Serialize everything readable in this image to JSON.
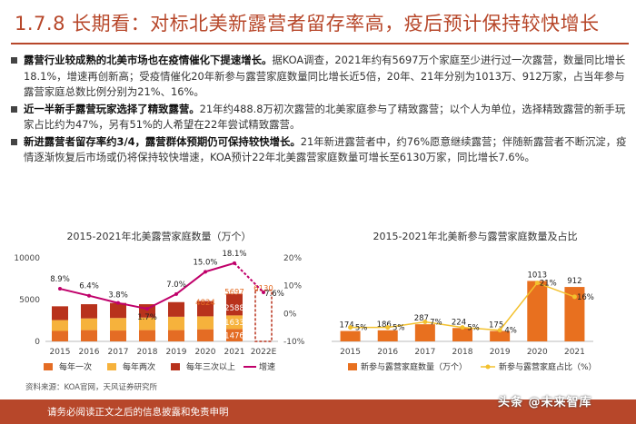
{
  "header": {
    "title": "1.7.8 长期看：对标北美新露营者留存率高，疫后预计保持较快增长"
  },
  "bullets": [
    {
      "lead": "露营行业较成熟的北美市场也在疫情催化下提速增长。",
      "text": "据KOA调查，2021年约有5697万个家庭至少进行过一次露营，数量同比增长18.1%，增速再创新高；受疫情催化20年新参与露营家庭数量同比增长近5倍，20年、21年分别为1013万、912万家，占当年参与露营家庭总数比例分别为21%、16%。"
    },
    {
      "lead": "近一半新手露营玩家选择了精致露营。",
      "text": "21年约488.8万初次露营的北美家庭参与了精致露营；以个人为单位，选择精致露营的新手玩家占比约为47%，另有51%的人希望在22年尝试精致露营。"
    },
    {
      "lead": "新进露营者留存率约3/4，露营群体预期仍可保持较快增长。",
      "text": "21年新进露营者中，约76%愿意继续露营；伴随新露营者不断沉淀，疫情逐渐恢复后市场或仍将保持较快增速，KOA预计22年北美露营家庭数量可增长至6130万家，同比增长7.6%。"
    }
  ],
  "chart_data": [
    {
      "type": "bar",
      "title": "2015-2021年北美露营家庭数量（万个）",
      "categories": [
        "2015",
        "2016",
        "2017",
        "2018",
        "2019",
        "2020",
        "2021",
        "2022E"
      ],
      "ylim": [
        0,
        10000
      ],
      "yticks": [
        "0",
        "5000",
        "10000"
      ],
      "y2lim": [
        -10,
        20
      ],
      "y2ticks": [
        "-10%",
        "0%",
        "10%",
        "20%"
      ],
      "series": [
        {
          "name": "每年一次",
          "color": "#e46c24",
          "values": [
            1250,
            1350,
            1300,
            1350,
            1350,
            1450,
            1476,
            null
          ]
        },
        {
          "name": "每年两次",
          "color": "#f6b23c",
          "values": [
            1300,
            1400,
            1500,
            1500,
            1600,
            1550,
            1633,
            null
          ]
        },
        {
          "name": "每年三次以上",
          "color": "#b8321c",
          "values": [
            1650,
            1700,
            1800,
            1600,
            1750,
            1824,
            2588,
            null
          ]
        },
        {
          "name": "增速",
          "color": "#c0006a",
          "type": "line",
          "values": [
            8.9,
            6.4,
            3.8,
            1.7,
            7.0,
            15.0,
            18.1,
            7.6
          ]
        }
      ],
      "forecast": {
        "category": "2022E",
        "value": 6130
      },
      "bar_labels": [
        "4824",
        "5697",
        "6130",
        "2588",
        "1633",
        "1476"
      ],
      "line_labels": [
        "8.9%",
        "6.4%",
        "3.8%",
        "1.7%",
        "7.0%",
        "15.0%",
        "18.1%",
        "7.6%"
      ]
    },
    {
      "type": "bar",
      "title": "2015-2021年北美新参与露营家庭数量及占比",
      "categories": [
        "2015",
        "2016",
        "2017",
        "2018",
        "2019",
        "2020",
        "2021"
      ],
      "ylim": [
        0,
        1400
      ],
      "y2lim": [
        0,
        30
      ],
      "series": [
        {
          "name": "新参与露营家庭数量（万个）",
          "color": "#e8701f",
          "values": [
            174,
            186,
            287,
            224,
            175,
            1013,
            912
          ]
        },
        {
          "name": "新参与露营家庭占比（%）",
          "color": "#f3c12e",
          "type": "line",
          "values": [
            5,
            5,
            7,
            5,
            4,
            21,
            16
          ]
        }
      ],
      "bar_labels": [
        "174",
        "186",
        "287",
        "224",
        "175",
        "1013",
        "912"
      ],
      "line_labels": [
        "5%",
        "5%",
        "7%",
        "5%",
        "4%",
        "21%",
        "16%"
      ]
    }
  ],
  "source": "资料来源：KOA官网，天风证券研究所",
  "footer": {
    "text": "请务必阅读正文之后的信息披露和免责申明",
    "watermark": "头条 @未来智库"
  },
  "colors": {
    "accent": "#b7472a"
  }
}
